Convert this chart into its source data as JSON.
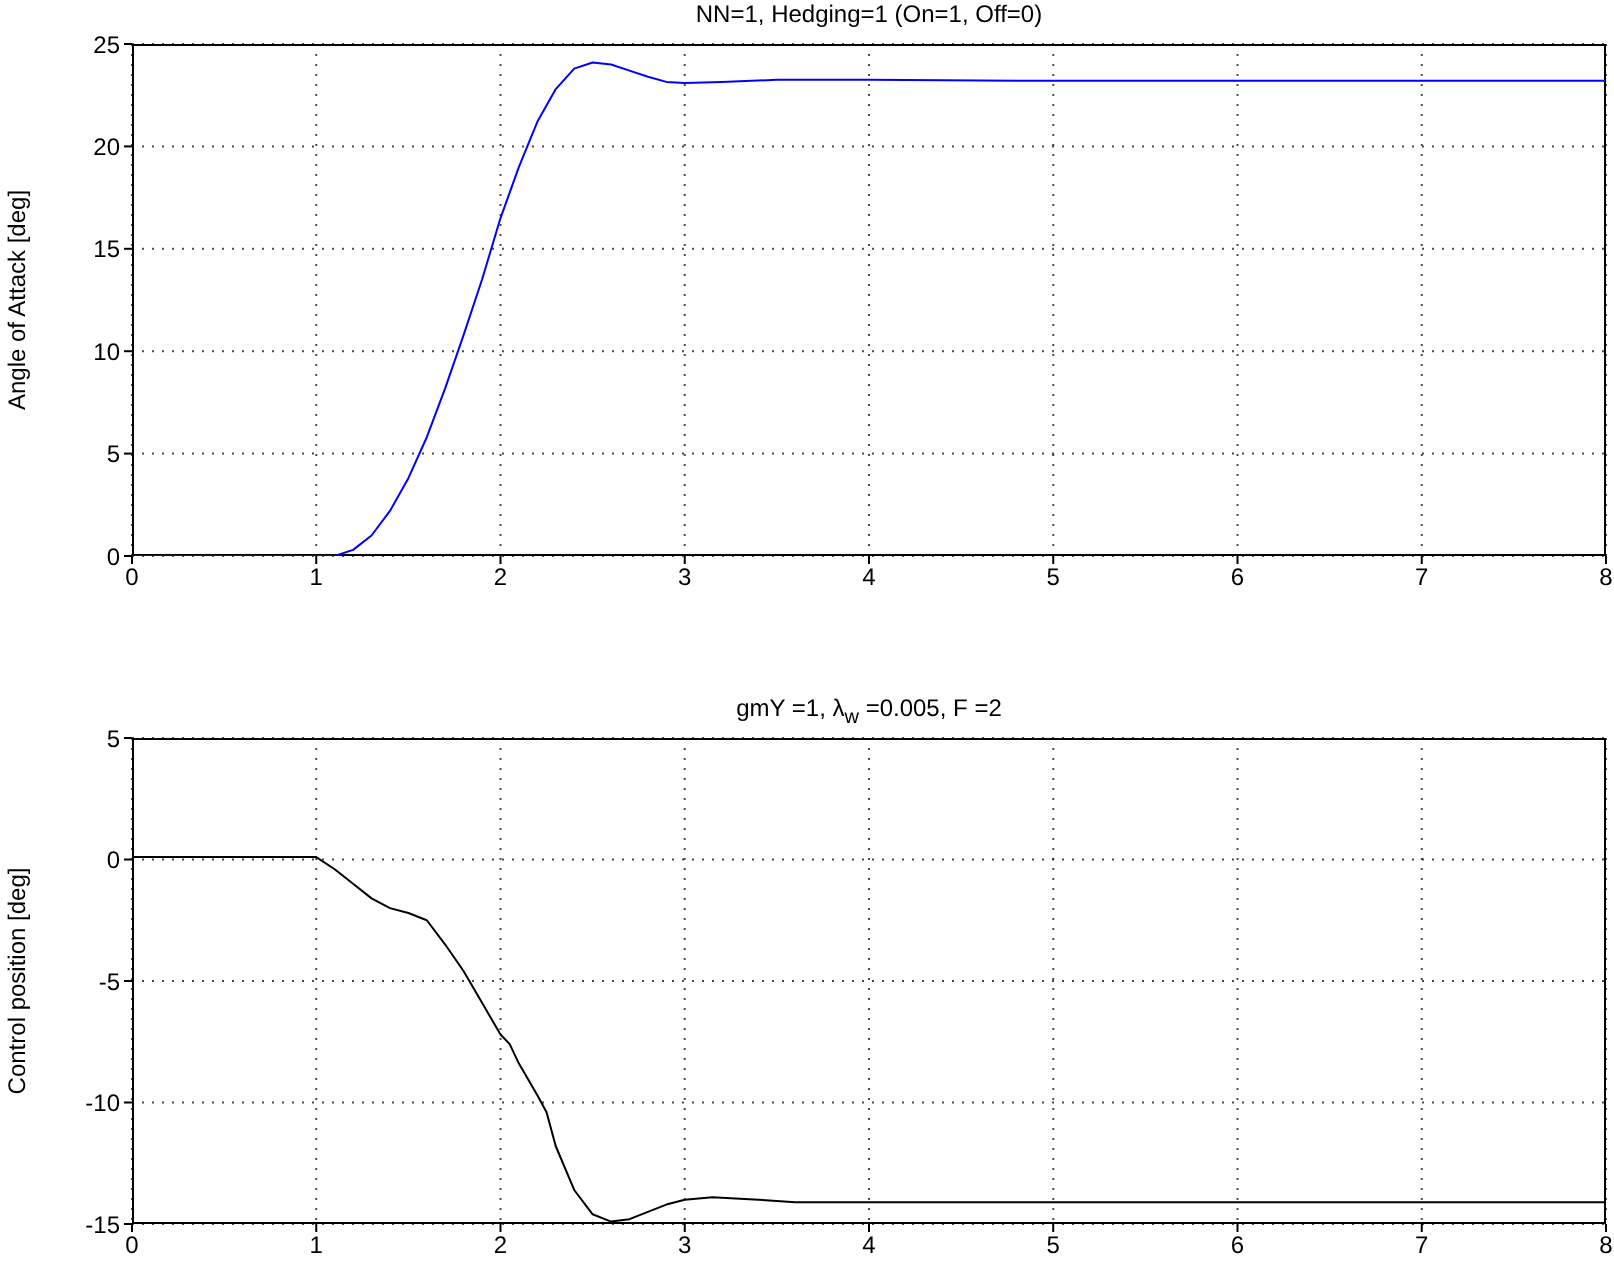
{
  "chart_data": [
    {
      "type": "line",
      "title": "NN=1, Hedging=1 (On=1, Off=0)",
      "ylabel": "Angle of Attack [deg]",
      "xlim": [
        0,
        8
      ],
      "xticks": [
        0,
        1,
        2,
        3,
        4,
        5,
        6,
        7,
        8
      ],
      "ylim": [
        0,
        25
      ],
      "yticks": [
        0,
        5,
        10,
        15,
        20,
        25
      ],
      "grid": true,
      "line_style": "solid",
      "marker": "none",
      "series": [
        {
          "color": "#0000ff",
          "x": [
            0,
            0.5,
            1,
            1.1,
            1.2,
            1.3,
            1.4,
            1.5,
            1.6,
            1.7,
            1.8,
            1.9,
            2,
            2.1,
            2.2,
            2.3,
            2.4,
            2.5,
            2.6,
            2.7,
            2.8,
            2.9,
            3,
            3.2,
            3.5,
            4,
            5,
            6,
            7,
            8
          ],
          "values": [
            0,
            0,
            0,
            0,
            0.3,
            1,
            2.2,
            3.8,
            5.8,
            8.2,
            10.8,
            13.5,
            16.5,
            19,
            21.2,
            22.8,
            23.8,
            24.1,
            24,
            23.7,
            23.4,
            23.15,
            23.1,
            23.15,
            23.25,
            23.25,
            23.2,
            23.2,
            23.2,
            23.2
          ]
        }
      ]
    },
    {
      "type": "line",
      "title": "gmY =1, λ$_{w}$ =0.005, F =2",
      "ylabel": "Control position [deg]",
      "xlim": [
        0,
        8
      ],
      "xticks": [
        0,
        1,
        2,
        3,
        4,
        5,
        6,
        7,
        8
      ],
      "ylim": [
        -15,
        5
      ],
      "yticks": [
        -15,
        -10,
        -5,
        0,
        5
      ],
      "grid": true,
      "line_style": "solid",
      "marker": "none",
      "series": [
        {
          "color": "#000000",
          "x": [
            0,
            0.5,
            1,
            1.1,
            1.2,
            1.3,
            1.4,
            1.5,
            1.6,
            1.7,
            1.8,
            1.9,
            2,
            2.05,
            2.1,
            2.2,
            2.25,
            2.3,
            2.4,
            2.5,
            2.6,
            2.7,
            2.8,
            2.9,
            3,
            3.15,
            3.4,
            3.6,
            4,
            5,
            6,
            7,
            8
          ],
          "values": [
            0.1,
            0.1,
            0.1,
            -0.4,
            -1,
            -1.6,
            -2,
            -2.2,
            -2.5,
            -3.5,
            -4.6,
            -5.9,
            -7.2,
            -7.6,
            -8.4,
            -9.7,
            -10.4,
            -11.8,
            -13.6,
            -14.6,
            -14.9,
            -14.8,
            -14.5,
            -14.2,
            -14,
            -13.9,
            -14,
            -14.1,
            -14.1,
            -14.1,
            -14.1,
            -14.1,
            -14.1
          ]
        }
      ]
    }
  ]
}
